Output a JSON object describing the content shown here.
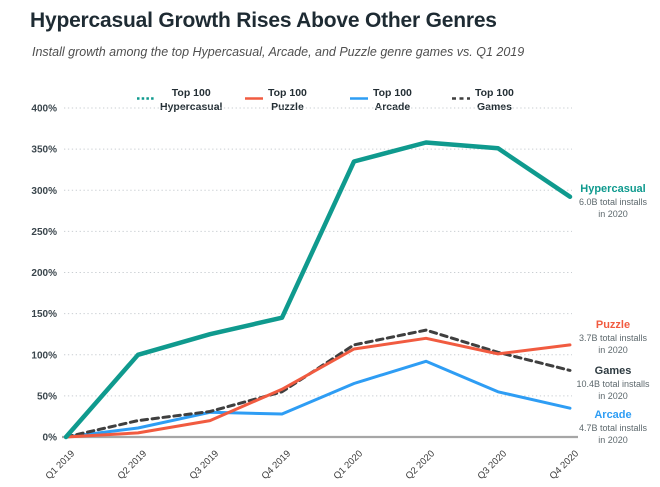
{
  "header": {
    "title": "Hypercasual Growth Rises Above Other Genres",
    "subtitle": "Install growth among the top Hypercasual, Arcade, and Puzzle genre games vs. Q1 2019"
  },
  "legend": {
    "items": [
      {
        "line1": "Top 100",
        "line2": "Hypercasual",
        "color": "#0f9a8e",
        "swatch_style": "dotted"
      },
      {
        "line1": "Top 100",
        "line2": "Puzzle",
        "color": "#f15b40",
        "swatch_style": "solid"
      },
      {
        "line1": "Top 100",
        "line2": "Arcade",
        "color": "#2e9df4",
        "swatch_style": "solid"
      },
      {
        "line1": "Top 100",
        "line2": "Games",
        "color": "#3f3f3f",
        "swatch_style": "dashed"
      }
    ]
  },
  "chart_data": {
    "type": "line",
    "title": "Hypercasual Growth Rises Above Other Genres",
    "xlabel": "",
    "ylabel": "",
    "categories": [
      "Q1 2019",
      "Q2 2019",
      "Q3 2019",
      "Q4 2019",
      "Q1 2020",
      "Q2 2020",
      "Q3 2020",
      "Q4 2020"
    ],
    "series": [
      {
        "name": "Top 100 Hypercasual",
        "color": "#0f9a8e",
        "line_style": "solid",
        "emphasis": true,
        "values": [
          0,
          100,
          125,
          145,
          335,
          358,
          351,
          292
        ]
      },
      {
        "name": "Top 100 Puzzle",
        "color": "#f15b40",
        "line_style": "solid",
        "emphasis": false,
        "values": [
          0,
          5,
          20,
          58,
          107,
          120,
          101,
          112
        ]
      },
      {
        "name": "Top 100 Arcade",
        "color": "#2e9df4",
        "line_style": "solid",
        "emphasis": false,
        "values": [
          0,
          11,
          30,
          28,
          65,
          92,
          55,
          35
        ]
      },
      {
        "name": "Top 100 Games",
        "color": "#3f3f3f",
        "line_style": "dashed",
        "emphasis": false,
        "values": [
          0,
          20,
          31,
          55,
          112,
          130,
          103,
          81
        ]
      }
    ],
    "ylim": [
      0,
      400
    ],
    "ytick_step": 50,
    "yticks": [
      "0%",
      "50%",
      "100%",
      "150%",
      "200%",
      "250%",
      "300%",
      "350%",
      "400%"
    ],
    "grid": "horizontal dotted",
    "legend_position": "top"
  },
  "annotations": [
    {
      "label": "Hypercasual",
      "installs": "6.0B total installs",
      "period": "in 2020",
      "color": "#0f9a8e"
    },
    {
      "label": "Puzzle",
      "installs": "3.7B total installs",
      "period": "in 2020",
      "color": "#f15b40"
    },
    {
      "label": "Games",
      "installs": "10.4B total installs",
      "period": "in 2020",
      "color": "#2e3b41"
    },
    {
      "label": "Arcade",
      "installs": "4.7B total installs",
      "period": "in 2020",
      "color": "#2e9df4"
    }
  ]
}
